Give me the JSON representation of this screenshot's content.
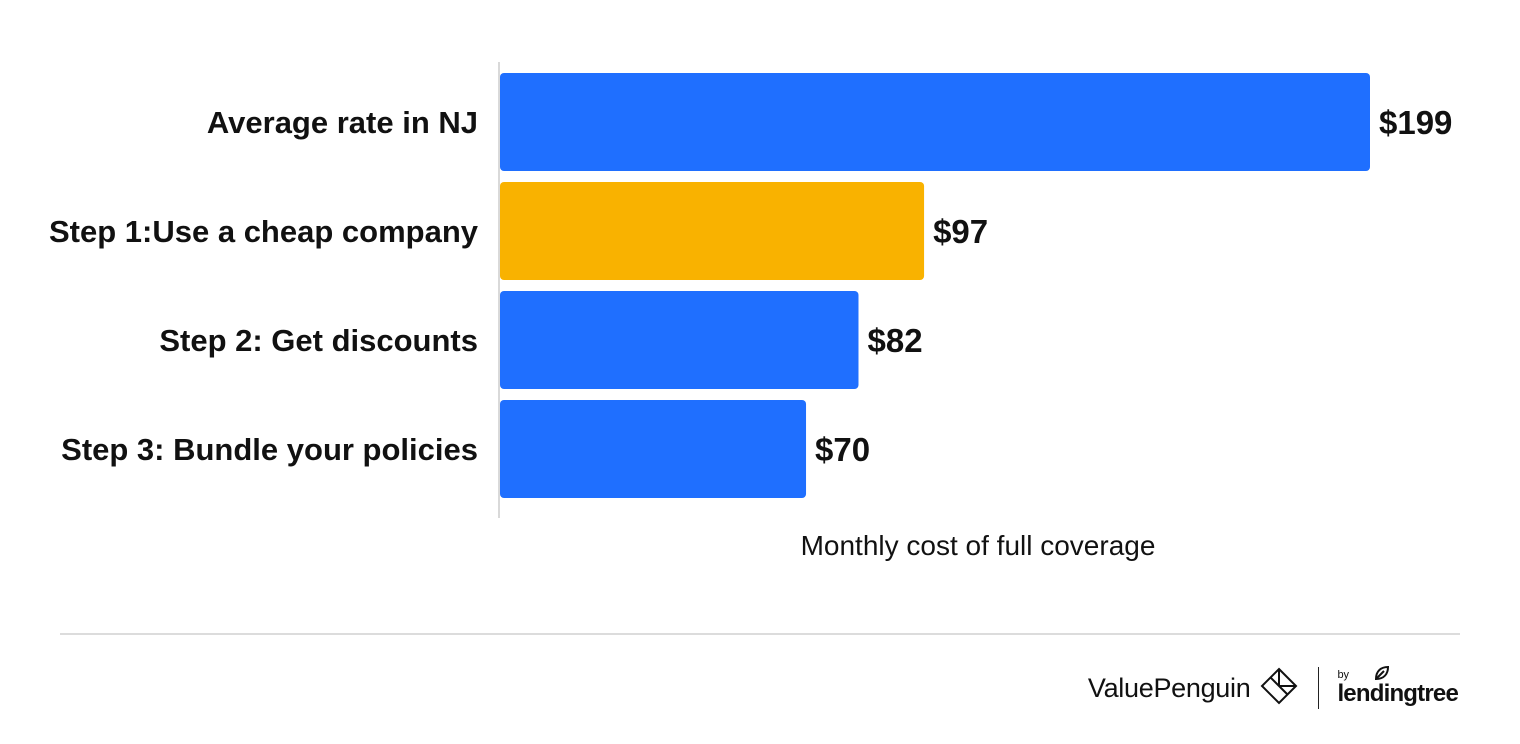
{
  "chart_data": {
    "type": "bar",
    "orientation": "horizontal",
    "categories": [
      "Average rate in NJ",
      "Step 1:Use a cheap company",
      "Step 2: Get discounts",
      "Step 3: Bundle your policies"
    ],
    "values": [
      199,
      97,
      82,
      70
    ],
    "value_labels": [
      "$199",
      "$97",
      "$82",
      "$70"
    ],
    "bar_colors": [
      "#1f6fff",
      "#f9b200",
      "#1f6fff",
      "#1f6fff"
    ],
    "xlabel": "Monthly cost of full coverage",
    "ylabel": "",
    "xlim": [
      0,
      199
    ],
    "grid": false
  },
  "footer": {
    "brand": "ValuePenguin",
    "brand_icon": "valuepenguin-diamond-logo-icon",
    "partner_prefix": "by",
    "partner": "lendingtree",
    "partner_icon": "leaf-icon"
  },
  "colors": {
    "primary_bar": "#1f6fff",
    "highlight_bar": "#f9b200",
    "text": "#111111",
    "axis": "#d9d9d9"
  }
}
